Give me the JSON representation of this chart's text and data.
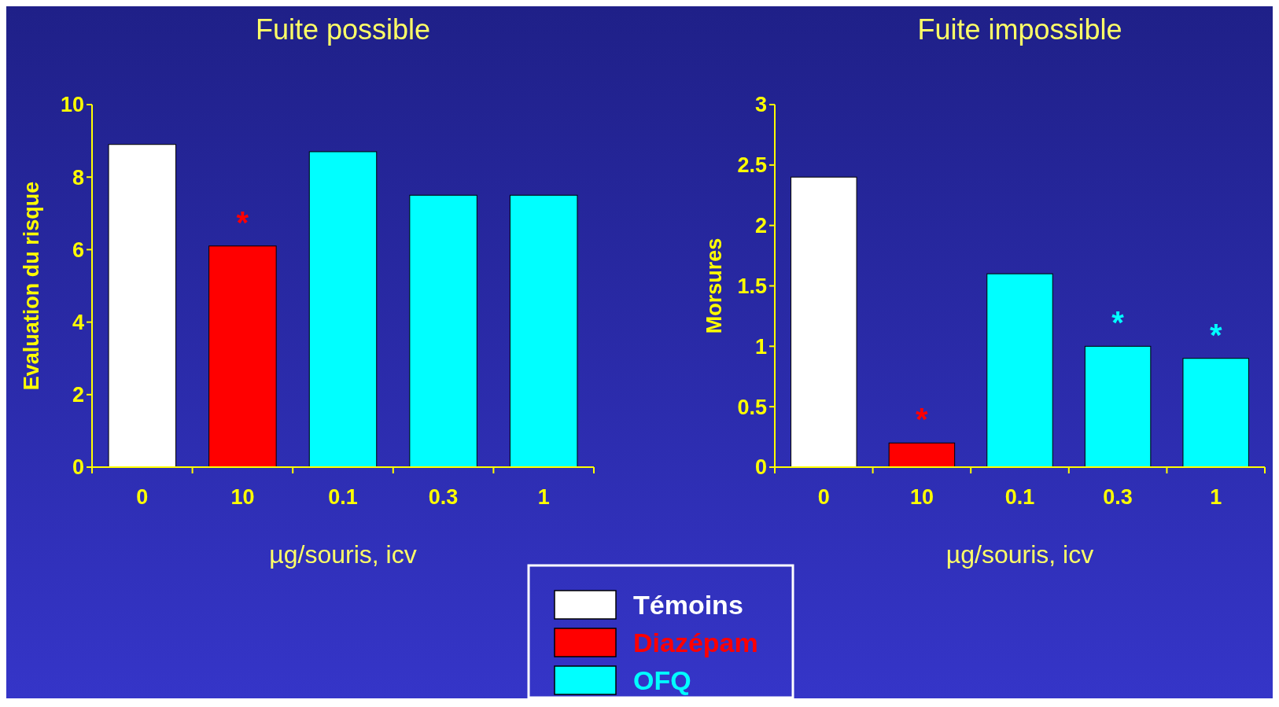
{
  "chart_data": [
    {
      "type": "bar",
      "title": "Fuite possible",
      "xlabel": "µg/souris, icv",
      "ylabel": "Evaluation du risque",
      "categories": [
        "0",
        "10",
        "0.1",
        "0.3",
        "1"
      ],
      "series": [
        {
          "name": "Témoins",
          "color": "#ffffff",
          "values": [
            8.9,
            null,
            null,
            null,
            null
          ]
        },
        {
          "name": "Diazépam",
          "color": "#ff0000",
          "values": [
            null,
            6.1,
            null,
            null,
            null
          ]
        },
        {
          "name": "OFQ",
          "color": "#00ffff",
          "values": [
            null,
            null,
            8.7,
            7.5,
            7.5
          ]
        }
      ],
      "ylim": [
        0,
        10
      ],
      "yticks": [
        0,
        2,
        4,
        6,
        8,
        10
      ],
      "grid": false,
      "legend": "bottom right",
      "annotations": [
        {
          "text": "*",
          "x": "10",
          "y": 6.1
        }
      ]
    },
    {
      "type": "bar",
      "title": "Fuite impossible",
      "xlabel": "µg/souris, icv",
      "ylabel": "Morsures",
      "categories": [
        "0",
        "10",
        "0.1",
        "0.3",
        "1"
      ],
      "series": [
        {
          "color": "#ffffff",
          "values": [
            2.4,
            null,
            null,
            null,
            null
          ]
        },
        {
          "color": "#ff0000",
          "values": [
            null,
            0.2,
            null,
            null,
            null
          ]
        },
        {
          "color": "#00ffff",
          "values": [
            null,
            null,
            1.6,
            1.0,
            0.9
          ]
        }
      ],
      "ylim": [
        0,
        3
      ],
      "yticks": [
        0,
        0.5,
        1,
        1.5,
        2,
        2.5,
        3
      ],
      "grid": false,
      "legend": false,
      "annotations": [
        {
          "text": "*",
          "x": "10",
          "y": 0.2
        },
        {
          "text": "*",
          "x": "0.3",
          "y": 1.0
        },
        {
          "text": "*",
          "x": "1",
          "y": 0.9
        }
      ]
    }
  ]
}
